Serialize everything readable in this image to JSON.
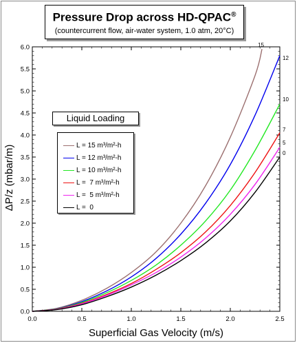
{
  "title": {
    "main": "Pressure Drop across HD-QPAC",
    "registered": "®",
    "subtitle": "(countercurrent flow, air-water system, 1.0 atm, 20°C)"
  },
  "legend": {
    "title": "Liquid Loading",
    "items": [
      {
        "label": "L = 15 m³/m²-h",
        "color": "#9b6f6f"
      },
      {
        "label": "L = 12 m³/m²-h",
        "color": "#0000ee"
      },
      {
        "label": "L = 10 m³/m²-h",
        "color": "#22e822"
      },
      {
        "label": "L =  7 m³/m²-h",
        "color": "#ee1111"
      },
      {
        "label": "L =  5 m³/m²-h",
        "color": "#ee22ee"
      },
      {
        "label": "L =  0",
        "color": "#000000"
      }
    ]
  },
  "chart_data": {
    "type": "line",
    "xlabel": "Superficial Gas Velocity (m/s)",
    "ylabel": "ΔP/z (mbar/m)",
    "xlim": [
      0,
      2.5
    ],
    "ylim": [
      0,
      6.0
    ],
    "xticks": [
      "0.0",
      "0.5",
      "1.0",
      "1.5",
      "2.0",
      "2.5"
    ],
    "yticks": [
      "0.0",
      "0.5",
      "1.0",
      "1.5",
      "2.0",
      "2.5",
      "3.0",
      "3.5",
      "4.0",
      "4.5",
      "5.0",
      "5.5",
      "6.0"
    ],
    "grid": false,
    "series": [
      {
        "name": "15",
        "color": "#9b6f6f",
        "x": [
          0,
          0.25,
          0.5,
          0.75,
          1.0,
          1.25,
          1.5,
          1.75,
          2.0,
          2.25,
          2.32
        ],
        "y": [
          0,
          0.07,
          0.25,
          0.52,
          0.88,
          1.35,
          2.0,
          2.85,
          3.95,
          5.35,
          5.95
        ]
      },
      {
        "name": "12",
        "color": "#0000ee",
        "x": [
          0,
          0.25,
          0.5,
          0.75,
          1.0,
          1.25,
          1.5,
          1.75,
          2.0,
          2.25,
          2.5
        ],
        "y": [
          0,
          0.06,
          0.22,
          0.46,
          0.78,
          1.2,
          1.75,
          2.45,
          3.33,
          4.45,
          5.8
        ]
      },
      {
        "name": "10",
        "color": "#22e822",
        "x": [
          0,
          0.25,
          0.5,
          0.75,
          1.0,
          1.25,
          1.5,
          1.75,
          2.0,
          2.25,
          2.5
        ],
        "y": [
          0,
          0.055,
          0.2,
          0.42,
          0.7,
          1.05,
          1.5,
          2.05,
          2.75,
          3.65,
          4.7
        ]
      },
      {
        "name": "7",
        "color": "#ee1111",
        "x": [
          0,
          0.25,
          0.5,
          0.75,
          1.0,
          1.25,
          1.5,
          1.75,
          2.0,
          2.25,
          2.5
        ],
        "y": [
          0,
          0.05,
          0.18,
          0.38,
          0.63,
          0.95,
          1.33,
          1.8,
          2.4,
          3.15,
          4.05
        ]
      },
      {
        "name": "5",
        "color": "#ee22ee",
        "x": [
          0,
          0.25,
          0.5,
          0.75,
          1.0,
          1.25,
          1.5,
          1.75,
          2.0,
          2.25,
          2.5
        ],
        "y": [
          0,
          0.045,
          0.17,
          0.36,
          0.6,
          0.88,
          1.23,
          1.66,
          2.2,
          2.88,
          3.72
        ]
      },
      {
        "name": "0",
        "color": "#000000",
        "x": [
          0,
          0.25,
          0.5,
          0.75,
          1.0,
          1.25,
          1.5,
          1.75,
          2.0,
          2.25,
          2.5
        ],
        "y": [
          0,
          0.04,
          0.15,
          0.33,
          0.55,
          0.82,
          1.15,
          1.55,
          2.05,
          2.7,
          3.5
        ]
      }
    ],
    "end_labels": [
      "15",
      "12",
      "10",
      "7",
      "5",
      "0"
    ]
  }
}
